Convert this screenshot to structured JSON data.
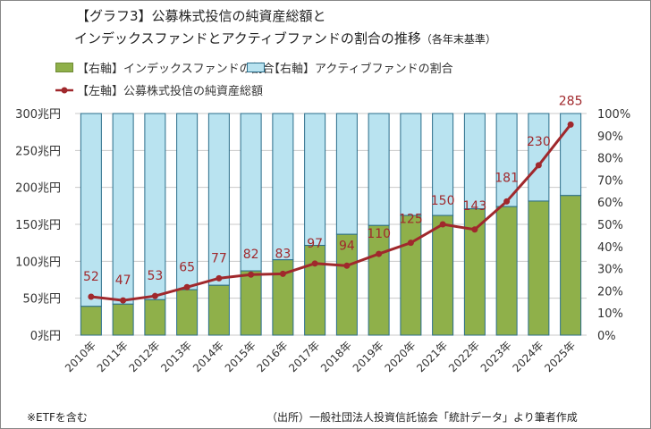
{
  "title_line1": "【グラフ3】公募株式投信の純資産総額と",
  "title_line2": "インデックスファンドとアクティブファンドの割合の推移",
  "title_note": "（各年末基準）",
  "legend": {
    "index": "【右軸】インデックスファンドの割合",
    "active": "【右軸】アクティブファンドの割合",
    "total": "【左軸】公募株式投信の純資産総額"
  },
  "footnote": "※ETFを含む",
  "source": "（出所）一般社団法人投資信託協会「統計データ」より筆者作成",
  "colors": {
    "index": "#8fb04a",
    "active": "#b9e3f0",
    "edge": "#2a6d8a",
    "line": "#a0282c"
  },
  "chart_data": {
    "type": "bar+line",
    "categories": [
      "2010年",
      "2011年",
      "2012年",
      "2013年",
      "2014年",
      "2015年",
      "2016年",
      "2017年",
      "2018年",
      "2019年",
      "2020年",
      "2021年",
      "2022年",
      "2023年",
      "2024年",
      "2025年"
    ],
    "series": [
      {
        "name": "【右軸】インデックスファンドの割合",
        "axis": "right",
        "type": "stacked-bar",
        "values": [
          13,
          14,
          16,
          20.5,
          22.5,
          29,
          34,
          40.5,
          45.5,
          49.5,
          54,
          54,
          57,
          58,
          60.5,
          63
        ]
      },
      {
        "name": "【右軸】アクティブファンドの割合",
        "axis": "right",
        "type": "stacked-bar",
        "values": [
          87,
          86,
          84,
          79.5,
          77.5,
          71,
          66,
          59.5,
          54.5,
          50.5,
          46,
          46,
          43,
          42,
          39.5,
          37
        ]
      },
      {
        "name": "【左軸】公募株式投信の純資産総額",
        "axis": "left",
        "type": "line",
        "values": [
          52,
          47,
          53,
          65,
          77,
          82,
          83,
          97,
          94,
          110,
          125,
          150,
          143,
          181,
          230,
          285
        ]
      }
    ],
    "left_axis": {
      "ticks": [
        "0兆円",
        "50兆円",
        "100兆円",
        "150兆円",
        "200兆円",
        "250兆円",
        "300兆円"
      ],
      "range": [
        0,
        300
      ]
    },
    "right_axis": {
      "ticks": [
        "0%",
        "10%",
        "20%",
        "30%",
        "40%",
        "50%",
        "60%",
        "70%",
        "80%",
        "90%",
        "100%"
      ],
      "range": [
        0,
        100
      ]
    },
    "grid": true
  }
}
